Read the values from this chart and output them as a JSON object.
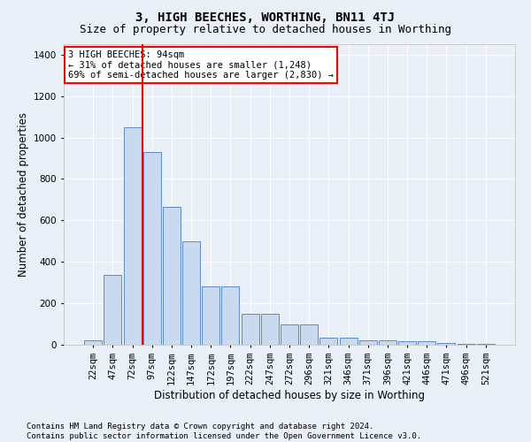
{
  "title": "3, HIGH BEECHES, WORTHING, BN11 4TJ",
  "subtitle": "Size of property relative to detached houses in Worthing",
  "xlabel": "Distribution of detached houses by size in Worthing",
  "ylabel": "Number of detached properties",
  "bar_labels": [
    "22sqm",
    "47sqm",
    "72sqm",
    "97sqm",
    "122sqm",
    "147sqm",
    "172sqm",
    "197sqm",
    "222sqm",
    "247sqm",
    "272sqm",
    "296sqm",
    "321sqm",
    "346sqm",
    "371sqm",
    "396sqm",
    "421sqm",
    "446sqm",
    "471sqm",
    "496sqm",
    "521sqm"
  ],
  "bar_heights": [
    20,
    335,
    1050,
    930,
    665,
    500,
    280,
    280,
    150,
    150,
    100,
    100,
    35,
    35,
    20,
    20,
    15,
    15,
    10,
    5,
    5
  ],
  "bar_color": "#c9d9f0",
  "bar_edge_color": "#5a8ac6",
  "vline_x": 2.5,
  "vline_color": "red",
  "annotation_text": "3 HIGH BEECHES: 94sqm\n← 31% of detached houses are smaller (1,248)\n69% of semi-detached houses are larger (2,830) →",
  "annotation_box_color": "white",
  "annotation_box_edge_color": "red",
  "ylim": [
    0,
    1450
  ],
  "yticks": [
    0,
    200,
    400,
    600,
    800,
    1000,
    1200,
    1400
  ],
  "footer_line1": "Contains HM Land Registry data © Crown copyright and database right 2024.",
  "footer_line2": "Contains public sector information licensed under the Open Government Licence v3.0.",
  "bg_color": "#eaf0f8",
  "plot_bg_color": "#eaf0f8",
  "grid_color": "white",
  "title_fontsize": 10,
  "subtitle_fontsize": 9,
  "label_fontsize": 8.5,
  "tick_fontsize": 7.5,
  "footer_fontsize": 6.5,
  "annotation_fontsize": 7.5
}
